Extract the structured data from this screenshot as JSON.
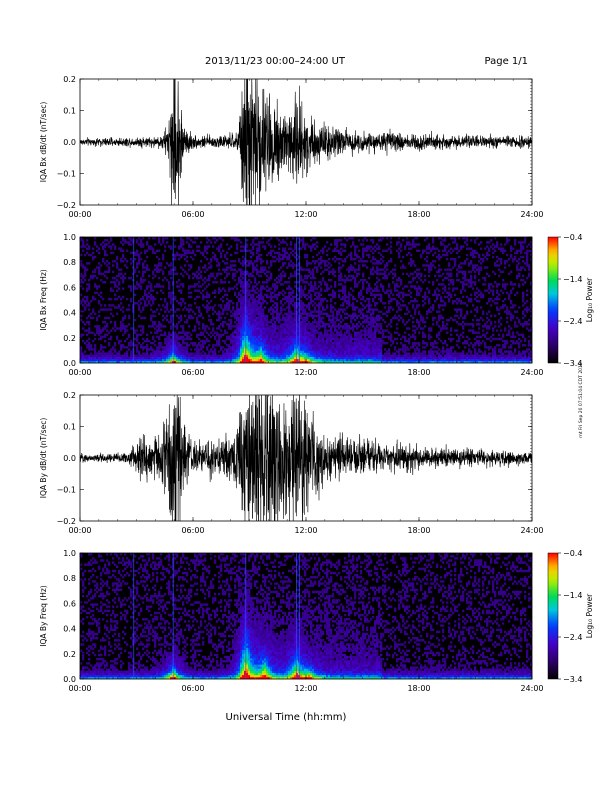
{
  "header": {
    "title": "2013/11/23  00:00–24:00 UT",
    "page": "Page 1/1"
  },
  "xlabel": "Universal Time (hh:mm)",
  "side_stamp": "rnt Fri Sep 20 07:51:04 CDT 2019",
  "x_ticks": [
    "00:00",
    "06:00",
    "12:00",
    "18:00",
    "24:00"
  ],
  "chart_data": [
    {
      "type": "line",
      "ylabel": "IQA Bx dB/dt (nT/sec)",
      "ylim": [
        -0.2,
        0.2
      ],
      "y_ticks": [
        "0.2",
        "0.1",
        "0.0",
        "−0.1",
        "−0.2"
      ],
      "y_tick_values": [
        0.2,
        0.1,
        0.0,
        -0.1,
        -0.2
      ],
      "xlim_hours": [
        0,
        24
      ],
      "noise_background": 0.012,
      "series_color": "#000000",
      "envelope": [
        [
          0,
          0.012
        ],
        [
          3.0,
          0.014
        ],
        [
          3.3,
          0.02
        ],
        [
          3.6,
          0.015
        ],
        [
          4.3,
          0.02
        ],
        [
          4.7,
          0.06
        ],
        [
          4.95,
          0.25
        ],
        [
          5.2,
          0.22
        ],
        [
          5.5,
          0.06
        ],
        [
          6.0,
          0.02
        ],
        [
          7.5,
          0.02
        ],
        [
          8.4,
          0.03
        ],
        [
          8.75,
          0.28
        ],
        [
          9.0,
          0.28
        ],
        [
          9.5,
          0.2
        ],
        [
          10.0,
          0.16
        ],
        [
          11.0,
          0.12
        ],
        [
          11.5,
          0.17
        ],
        [
          12.0,
          0.1
        ],
        [
          12.5,
          0.07
        ],
        [
          13.5,
          0.05
        ],
        [
          15.0,
          0.03
        ],
        [
          16.0,
          0.03
        ],
        [
          18.0,
          0.03
        ],
        [
          20.0,
          0.02
        ],
        [
          24.0,
          0.018
        ]
      ]
    },
    {
      "type": "heatmap",
      "ylabel": "IQA Bx Freq (Hz)",
      "ylim": [
        0.0,
        1.0
      ],
      "y_ticks": [
        "1.0",
        "0.8",
        "0.6",
        "0.4",
        "0.2",
        "0.0"
      ],
      "y_tick_values": [
        1.0,
        0.8,
        0.6,
        0.4,
        0.2,
        0.0
      ],
      "xlim_hours": [
        0,
        24
      ],
      "colorbar": {
        "label": "Log₁₀ Power",
        "ticks": [
          "−0.4",
          "−1.4",
          "−2.4",
          "−3.4"
        ],
        "tick_values": [
          -0.4,
          -1.4,
          -2.4,
          -3.4
        ],
        "range": [
          -3.4,
          -0.4
        ]
      },
      "vertical_lines_hours": [
        2.85,
        4.95,
        8.8,
        11.5,
        11.65
      ],
      "bursts": [
        {
          "t": 4.95,
          "height": 0.2,
          "level": 0.7
        },
        {
          "t": 8.8,
          "height": 0.45,
          "level": 0.95
        },
        {
          "t": 9.6,
          "height": 0.25,
          "level": 0.6
        },
        {
          "t": 11.5,
          "height": 0.3,
          "level": 0.7
        },
        {
          "t": 12.0,
          "height": 0.12,
          "level": 0.5
        }
      ]
    },
    {
      "type": "line",
      "ylabel": "IQA By dB/dt (nT/sec)",
      "ylim": [
        -0.2,
        0.2
      ],
      "y_ticks": [
        "0.2",
        "0.1",
        "0.0",
        "−0.1",
        "−0.2"
      ],
      "y_tick_values": [
        0.2,
        0.1,
        0.0,
        -0.1,
        -0.2
      ],
      "xlim_hours": [
        0,
        24
      ],
      "noise_background": 0.012,
      "series_color": "#000000",
      "envelope": [
        [
          0,
          0.012
        ],
        [
          2.5,
          0.018
        ],
        [
          3.0,
          0.05
        ],
        [
          3.4,
          0.08
        ],
        [
          3.8,
          0.06
        ],
        [
          4.4,
          0.1
        ],
        [
          4.9,
          0.26
        ],
        [
          5.3,
          0.24
        ],
        [
          5.6,
          0.08
        ],
        [
          6.2,
          0.05
        ],
        [
          7.5,
          0.05
        ],
        [
          8.3,
          0.09
        ],
        [
          8.7,
          0.3
        ],
        [
          9.2,
          0.3
        ],
        [
          10.0,
          0.25
        ],
        [
          11.0,
          0.22
        ],
        [
          11.8,
          0.25
        ],
        [
          12.2,
          0.12
        ],
        [
          13.0,
          0.08
        ],
        [
          14.0,
          0.06
        ],
        [
          16.0,
          0.05
        ],
        [
          18.0,
          0.04
        ],
        [
          20.0,
          0.03
        ],
        [
          24.0,
          0.02
        ]
      ]
    },
    {
      "type": "heatmap",
      "ylabel": "IQA By Freq (Hz)",
      "ylim": [
        0.0,
        1.0
      ],
      "y_ticks": [
        "1.0",
        "0.8",
        "0.6",
        "0.4",
        "0.2",
        "0.0"
      ],
      "y_tick_values": [
        1.0,
        0.8,
        0.6,
        0.4,
        0.2,
        0.0
      ],
      "xlim_hours": [
        0,
        24
      ],
      "colorbar": {
        "label": "Log₁₀ Power",
        "ticks": [
          "−0.4",
          "−1.4",
          "−2.4",
          "−3.4"
        ],
        "tick_values": [
          -0.4,
          -1.4,
          -2.4,
          -3.4
        ],
        "range": [
          -3.4,
          -0.4
        ]
      },
      "vertical_lines_hours": [
        2.85,
        4.95,
        8.8,
        11.5,
        11.65
      ],
      "bursts": [
        {
          "t": 4.95,
          "height": 0.22,
          "level": 0.75
        },
        {
          "t": 8.8,
          "height": 0.5,
          "level": 0.95
        },
        {
          "t": 9.8,
          "height": 0.3,
          "level": 0.7
        },
        {
          "t": 11.5,
          "height": 0.35,
          "level": 0.75
        },
        {
          "t": 12.2,
          "height": 0.15,
          "level": 0.55
        }
      ]
    }
  ]
}
